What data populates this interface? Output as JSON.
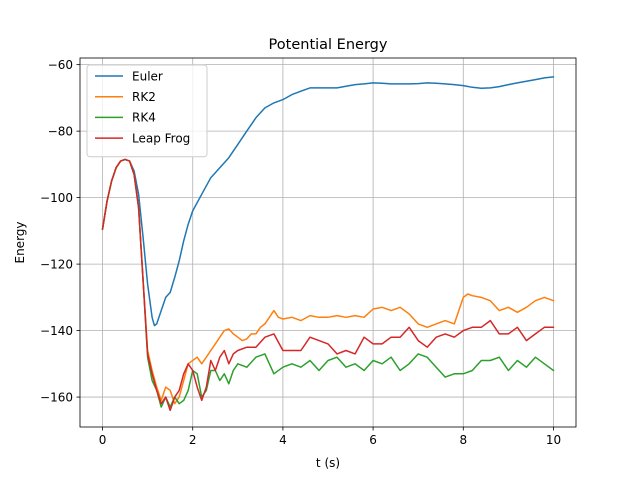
{
  "chart_data": {
    "type": "line",
    "title": "Potential Energy",
    "xlabel": "t (s)",
    "ylabel": "Energy",
    "xlim": [
      -0.5,
      10.5
    ],
    "ylim": [
      -169,
      -58
    ],
    "xticks": [
      0,
      2,
      4,
      6,
      8,
      10
    ],
    "yticks": [
      -160,
      -140,
      -120,
      -100,
      -80,
      -60
    ],
    "xtick_labels": [
      "0",
      "2",
      "4",
      "6",
      "8",
      "10"
    ],
    "ytick_labels": [
      "−160",
      "−140",
      "−120",
      "−100",
      "−80",
      "−60"
    ],
    "grid": true,
    "legend_position": "top-left",
    "series": [
      {
        "name": "Euler",
        "color": "#1f77b4",
        "points": [
          [
            0,
            -109.5
          ],
          [
            0.1,
            -101
          ],
          [
            0.2,
            -95
          ],
          [
            0.3,
            -91
          ],
          [
            0.4,
            -89
          ],
          [
            0.5,
            -88.5
          ],
          [
            0.6,
            -89
          ],
          [
            0.7,
            -92
          ],
          [
            0.8,
            -99
          ],
          [
            0.9,
            -112
          ],
          [
            1.0,
            -126
          ],
          [
            1.1,
            -136
          ],
          [
            1.15,
            -138.5
          ],
          [
            1.2,
            -138
          ],
          [
            1.3,
            -134
          ],
          [
            1.4,
            -130
          ],
          [
            1.5,
            -128.5
          ],
          [
            1.6,
            -124
          ],
          [
            1.7,
            -119
          ],
          [
            1.8,
            -113
          ],
          [
            1.9,
            -108
          ],
          [
            2.0,
            -104
          ],
          [
            2.2,
            -99
          ],
          [
            2.4,
            -94
          ],
          [
            2.6,
            -91
          ],
          [
            2.8,
            -88
          ],
          [
            3.0,
            -84
          ],
          [
            3.2,
            -80
          ],
          [
            3.4,
            -76
          ],
          [
            3.6,
            -73
          ],
          [
            3.8,
            -71.5
          ],
          [
            4.0,
            -70.5
          ],
          [
            4.2,
            -69
          ],
          [
            4.4,
            -68
          ],
          [
            4.6,
            -67
          ],
          [
            4.8,
            -67
          ],
          [
            5.0,
            -67
          ],
          [
            5.2,
            -67
          ],
          [
            5.4,
            -66.5
          ],
          [
            5.6,
            -66
          ],
          [
            5.8,
            -65.8
          ],
          [
            6.0,
            -65.5
          ],
          [
            6.2,
            -65.6
          ],
          [
            6.4,
            -65.8
          ],
          [
            6.6,
            -65.8
          ],
          [
            6.8,
            -65.8
          ],
          [
            7.0,
            -65.7
          ],
          [
            7.2,
            -65.5
          ],
          [
            7.4,
            -65.6
          ],
          [
            7.6,
            -65.8
          ],
          [
            7.8,
            -66
          ],
          [
            8.0,
            -66.3
          ],
          [
            8.2,
            -66.8
          ],
          [
            8.4,
            -67.1
          ],
          [
            8.6,
            -67
          ],
          [
            8.8,
            -66.6
          ],
          [
            9.0,
            -66
          ],
          [
            9.2,
            -65.5
          ],
          [
            9.4,
            -65
          ],
          [
            9.6,
            -64.5
          ],
          [
            9.8,
            -64
          ],
          [
            10.0,
            -63.7
          ]
        ]
      },
      {
        "name": "RK2",
        "color": "#ff7f0e",
        "points": [
          [
            0,
            -109.5
          ],
          [
            0.1,
            -101
          ],
          [
            0.2,
            -95
          ],
          [
            0.3,
            -91
          ],
          [
            0.4,
            -89
          ],
          [
            0.5,
            -88.5
          ],
          [
            0.6,
            -89
          ],
          [
            0.7,
            -93
          ],
          [
            0.8,
            -103
          ],
          [
            0.9,
            -125
          ],
          [
            1.0,
            -146
          ],
          [
            1.1,
            -152
          ],
          [
            1.2,
            -157
          ],
          [
            1.3,
            -161
          ],
          [
            1.4,
            -157
          ],
          [
            1.5,
            -158
          ],
          [
            1.6,
            -162
          ],
          [
            1.7,
            -160
          ],
          [
            1.8,
            -155
          ],
          [
            1.9,
            -150
          ],
          [
            2.0,
            -149
          ],
          [
            2.1,
            -148
          ],
          [
            2.2,
            -150
          ],
          [
            2.3,
            -148
          ],
          [
            2.4,
            -146
          ],
          [
            2.5,
            -144
          ],
          [
            2.6,
            -142
          ],
          [
            2.7,
            -140
          ],
          [
            2.8,
            -139.5
          ],
          [
            2.9,
            -141
          ],
          [
            3.0,
            -142
          ],
          [
            3.1,
            -143
          ],
          [
            3.2,
            -142.5
          ],
          [
            3.3,
            -141
          ],
          [
            3.4,
            -141
          ],
          [
            3.5,
            -139
          ],
          [
            3.6,
            -138
          ],
          [
            3.7,
            -136
          ],
          [
            3.8,
            -134
          ],
          [
            3.9,
            -136
          ],
          [
            4.0,
            -136.5
          ],
          [
            4.2,
            -136
          ],
          [
            4.4,
            -137
          ],
          [
            4.6,
            -135.5
          ],
          [
            4.8,
            -136
          ],
          [
            5.0,
            -136
          ],
          [
            5.2,
            -135.5
          ],
          [
            5.4,
            -136
          ],
          [
            5.6,
            -135.5
          ],
          [
            5.8,
            -136
          ],
          [
            6.0,
            -133.5
          ],
          [
            6.2,
            -133
          ],
          [
            6.4,
            -134
          ],
          [
            6.6,
            -133
          ],
          [
            6.8,
            -135
          ],
          [
            7.0,
            -138
          ],
          [
            7.2,
            -139
          ],
          [
            7.4,
            -138
          ],
          [
            7.6,
            -137
          ],
          [
            7.8,
            -138
          ],
          [
            8.0,
            -130
          ],
          [
            8.1,
            -129
          ],
          [
            8.2,
            -129.5
          ],
          [
            8.4,
            -130
          ],
          [
            8.6,
            -131
          ],
          [
            8.8,
            -134
          ],
          [
            9.0,
            -133
          ],
          [
            9.2,
            -134.5
          ],
          [
            9.4,
            -133
          ],
          [
            9.6,
            -131
          ],
          [
            9.8,
            -130
          ],
          [
            10.0,
            -131
          ]
        ]
      },
      {
        "name": "RK4",
        "color": "#2ca02c",
        "points": [
          [
            0,
            -109.5
          ],
          [
            0.1,
            -101
          ],
          [
            0.2,
            -95
          ],
          [
            0.3,
            -91
          ],
          [
            0.4,
            -89
          ],
          [
            0.5,
            -88.5
          ],
          [
            0.6,
            -89
          ],
          [
            0.7,
            -93
          ],
          [
            0.8,
            -103
          ],
          [
            0.9,
            -125
          ],
          [
            1.0,
            -148
          ],
          [
            1.1,
            -155
          ],
          [
            1.2,
            -158
          ],
          [
            1.3,
            -163
          ],
          [
            1.4,
            -160
          ],
          [
            1.5,
            -163
          ],
          [
            1.6,
            -160
          ],
          [
            1.7,
            -162
          ],
          [
            1.8,
            -161
          ],
          [
            1.9,
            -158
          ],
          [
            2.0,
            -152
          ],
          [
            2.1,
            -153
          ],
          [
            2.2,
            -160
          ],
          [
            2.3,
            -158
          ],
          [
            2.4,
            -152
          ],
          [
            2.5,
            -152
          ],
          [
            2.6,
            -155
          ],
          [
            2.7,
            -153
          ],
          [
            2.8,
            -156
          ],
          [
            2.9,
            -152
          ],
          [
            3.0,
            -150
          ],
          [
            3.2,
            -151
          ],
          [
            3.4,
            -148
          ],
          [
            3.6,
            -147
          ],
          [
            3.8,
            -153
          ],
          [
            4.0,
            -151
          ],
          [
            4.2,
            -150
          ],
          [
            4.4,
            -151
          ],
          [
            4.6,
            -149
          ],
          [
            4.8,
            -152
          ],
          [
            5.0,
            -149
          ],
          [
            5.2,
            -148
          ],
          [
            5.4,
            -151
          ],
          [
            5.6,
            -150
          ],
          [
            5.8,
            -152
          ],
          [
            6.0,
            -149
          ],
          [
            6.2,
            -150
          ],
          [
            6.4,
            -148
          ],
          [
            6.6,
            -152
          ],
          [
            6.8,
            -150
          ],
          [
            7.0,
            -147
          ],
          [
            7.2,
            -148
          ],
          [
            7.4,
            -151
          ],
          [
            7.6,
            -154
          ],
          [
            7.8,
            -153
          ],
          [
            8.0,
            -153
          ],
          [
            8.2,
            -152
          ],
          [
            8.4,
            -149
          ],
          [
            8.6,
            -149
          ],
          [
            8.8,
            -148
          ],
          [
            9.0,
            -152
          ],
          [
            9.2,
            -149
          ],
          [
            9.4,
            -151
          ],
          [
            9.6,
            -148
          ],
          [
            9.8,
            -150
          ],
          [
            10.0,
            -152
          ]
        ]
      },
      {
        "name": "Leap Frog",
        "color": "#d62728",
        "points": [
          [
            0,
            -109.5
          ],
          [
            0.1,
            -101
          ],
          [
            0.2,
            -95
          ],
          [
            0.3,
            -91
          ],
          [
            0.4,
            -89
          ],
          [
            0.5,
            -88.5
          ],
          [
            0.6,
            -89
          ],
          [
            0.7,
            -93
          ],
          [
            0.8,
            -103
          ],
          [
            0.9,
            -125
          ],
          [
            1.0,
            -147
          ],
          [
            1.1,
            -153
          ],
          [
            1.2,
            -158
          ],
          [
            1.3,
            -162
          ],
          [
            1.4,
            -160
          ],
          [
            1.5,
            -164
          ],
          [
            1.6,
            -160
          ],
          [
            1.7,
            -158
          ],
          [
            1.8,
            -153
          ],
          [
            1.9,
            -150
          ],
          [
            2.0,
            -152
          ],
          [
            2.1,
            -157
          ],
          [
            2.2,
            -161
          ],
          [
            2.3,
            -157
          ],
          [
            2.4,
            -149
          ],
          [
            2.5,
            -152
          ],
          [
            2.6,
            -148
          ],
          [
            2.7,
            -146
          ],
          [
            2.8,
            -150
          ],
          [
            2.9,
            -147
          ],
          [
            3.0,
            -146
          ],
          [
            3.2,
            -145
          ],
          [
            3.4,
            -145
          ],
          [
            3.6,
            -142
          ],
          [
            3.8,
            -141
          ],
          [
            4.0,
            -146
          ],
          [
            4.2,
            -146
          ],
          [
            4.4,
            -146
          ],
          [
            4.6,
            -142
          ],
          [
            4.8,
            -143
          ],
          [
            5.0,
            -144
          ],
          [
            5.2,
            -147
          ],
          [
            5.4,
            -146
          ],
          [
            5.6,
            -147
          ],
          [
            5.8,
            -142
          ],
          [
            6.0,
            -144
          ],
          [
            6.2,
            -144
          ],
          [
            6.4,
            -142
          ],
          [
            6.6,
            -142
          ],
          [
            6.8,
            -139
          ],
          [
            7.0,
            -143
          ],
          [
            7.2,
            -145
          ],
          [
            7.4,
            -142
          ],
          [
            7.6,
            -141
          ],
          [
            7.8,
            -142
          ],
          [
            8.0,
            -140
          ],
          [
            8.2,
            -139
          ],
          [
            8.4,
            -139
          ],
          [
            8.6,
            -137
          ],
          [
            8.8,
            -141
          ],
          [
            9.0,
            -141
          ],
          [
            9.2,
            -139
          ],
          [
            9.4,
            -143
          ],
          [
            9.6,
            -141
          ],
          [
            9.8,
            -139
          ],
          [
            10.0,
            -139
          ]
        ]
      }
    ]
  }
}
